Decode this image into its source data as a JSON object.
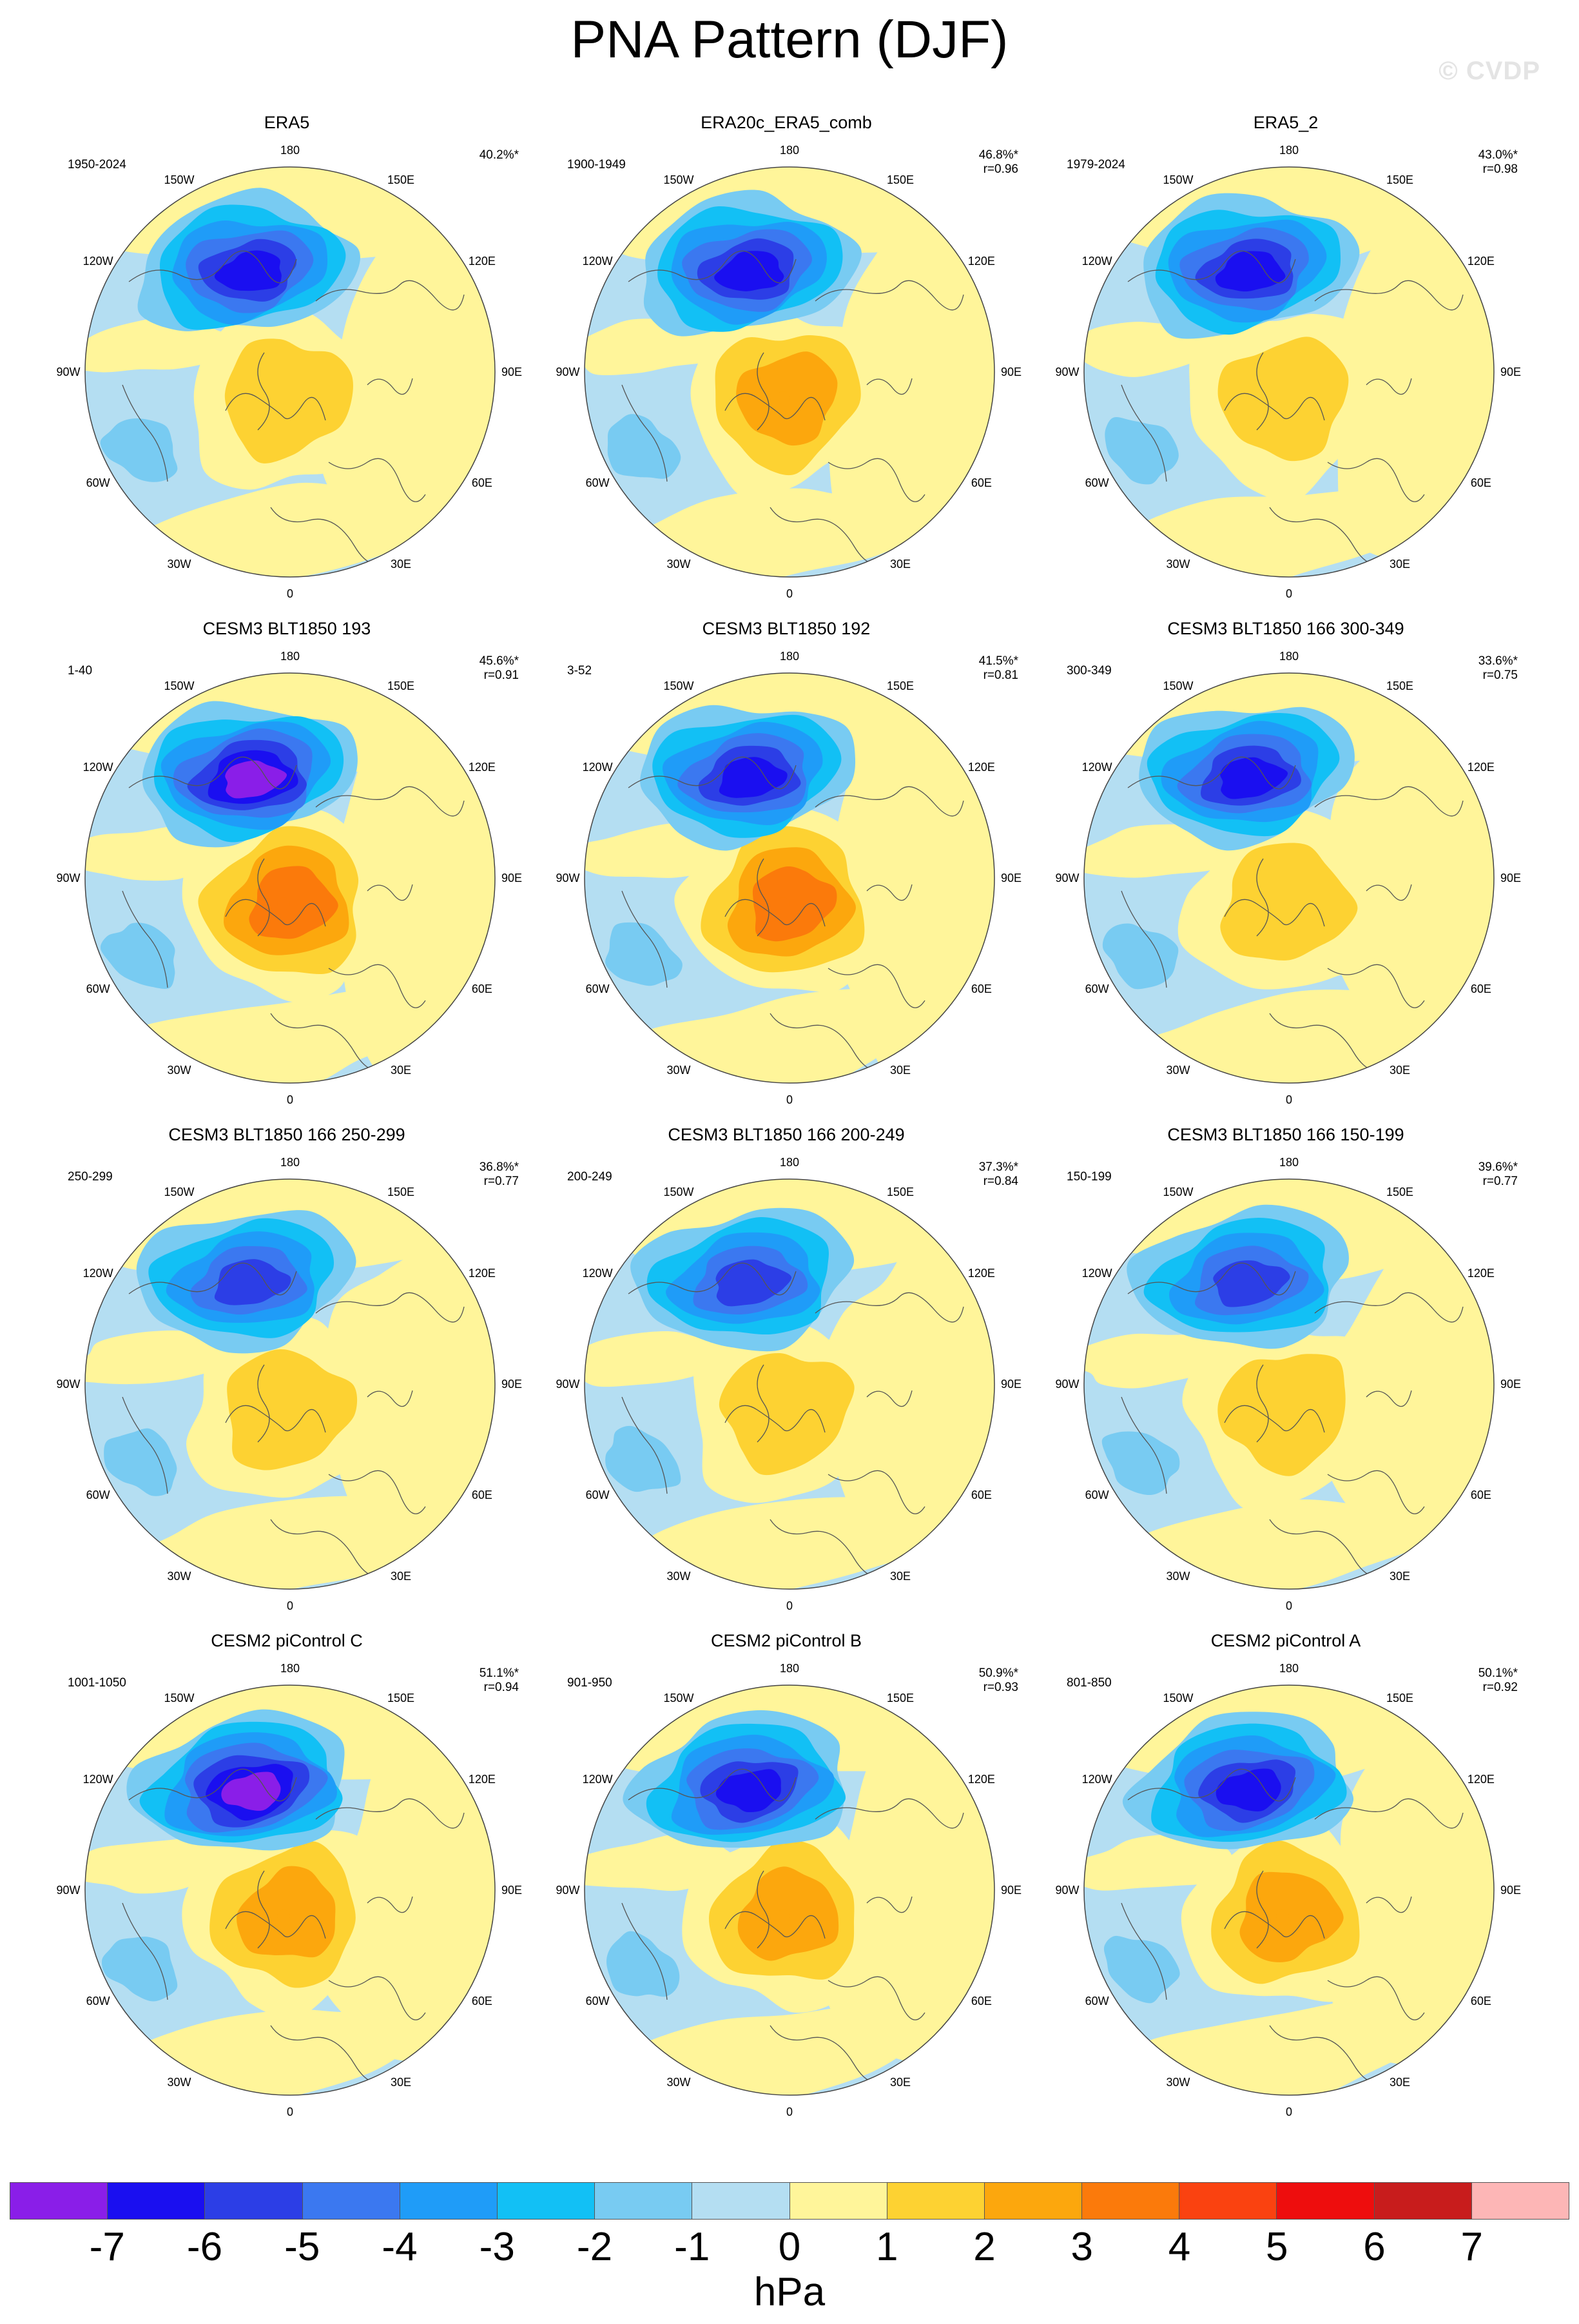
{
  "title": "PNA Pattern (DJF)",
  "watermark": "© CVDP",
  "longitude_labels": [
    "180",
    "150E",
    "120E",
    "90E",
    "60E",
    "30E",
    "0",
    "30W",
    "60W",
    "90W",
    "120W",
    "150W"
  ],
  "panels": [
    {
      "title": "ERA5",
      "period": "1950-2024",
      "pct": "40.2%*",
      "r": "",
      "low_strength": 0.88,
      "high_strength": 0.45,
      "layout": "row1"
    },
    {
      "title": "ERA20c_ERA5_comb",
      "period": "1900-1949",
      "pct": "46.8%*",
      "r": "r=0.96",
      "low_strength": 0.85,
      "high_strength": 0.5,
      "layout": "row1"
    },
    {
      "title": "ERA5_2",
      "period": "1979-2024",
      "pct": "43.0%*",
      "r": "r=0.98",
      "low_strength": 0.85,
      "high_strength": 0.45,
      "layout": "row1"
    },
    {
      "title": "CESM3 BLT1850 193",
      "period": "1-40",
      "pct": "45.6%*",
      "r": "r=0.91",
      "low_strength": 0.95,
      "high_strength": 0.75,
      "layout": "row2"
    },
    {
      "title": "CESM3 BLT1850 192",
      "period": "3-52",
      "pct": "41.5%*",
      "r": "r=0.81",
      "low_strength": 0.8,
      "high_strength": 0.7,
      "layout": "row2"
    },
    {
      "title": "CESM3 BLT1850 166 300-349",
      "period": "300-349",
      "pct": "33.6%*",
      "r": "r=0.75",
      "low_strength": 0.85,
      "high_strength": 0.35,
      "layout": "row2"
    },
    {
      "title": "CESM3 BLT1850 166 250-299",
      "period": "250-299",
      "pct": "36.8%*",
      "r": "r=0.77",
      "low_strength": 0.7,
      "high_strength": 0.45,
      "layout": "row3"
    },
    {
      "title": "CESM3 BLT1850 166 200-249",
      "period": "200-249",
      "pct": "37.3%*",
      "r": "r=0.84",
      "low_strength": 0.72,
      "high_strength": 0.4,
      "layout": "row3"
    },
    {
      "title": "CESM3 BLT1850 166 150-199",
      "period": "150-199",
      "pct": "39.6%*",
      "r": "r=0.77",
      "low_strength": 0.75,
      "high_strength": 0.45,
      "layout": "row3"
    },
    {
      "title": "CESM2 piControl C",
      "period": "1001-1050",
      "pct": "51.1%*",
      "r": "r=0.94",
      "low_strength": 1.0,
      "high_strength": 0.55,
      "layout": "row4"
    },
    {
      "title": "CESM2 piControl B",
      "period": "901-950",
      "pct": "50.9%*",
      "r": "r=0.93",
      "low_strength": 0.92,
      "high_strength": 0.6,
      "layout": "row4"
    },
    {
      "title": "CESM2 piControl A",
      "period": "801-850",
      "pct": "50.1%*",
      "r": "r=0.92",
      "low_strength": 0.9,
      "high_strength": 0.5,
      "layout": "row4"
    }
  ],
  "colorbar": {
    "units": "hPa",
    "colors": [
      "#8a1ee8",
      "#1a0ff0",
      "#2c3ee6",
      "#3b78f0",
      "#1f9cf8",
      "#12c0f5",
      "#78cbf2",
      "#b4def2",
      "#fff59a",
      "#fdd232",
      "#fca70d",
      "#fb7a0b",
      "#fa4210",
      "#ee0d0d",
      "#c81c1c",
      "#fdb6b6"
    ],
    "ticks": [
      "-7",
      "-6",
      "-5",
      "-4",
      "-3",
      "-2",
      "-1",
      "0",
      "1",
      "2",
      "3",
      "4",
      "5",
      "6",
      "7"
    ]
  }
}
